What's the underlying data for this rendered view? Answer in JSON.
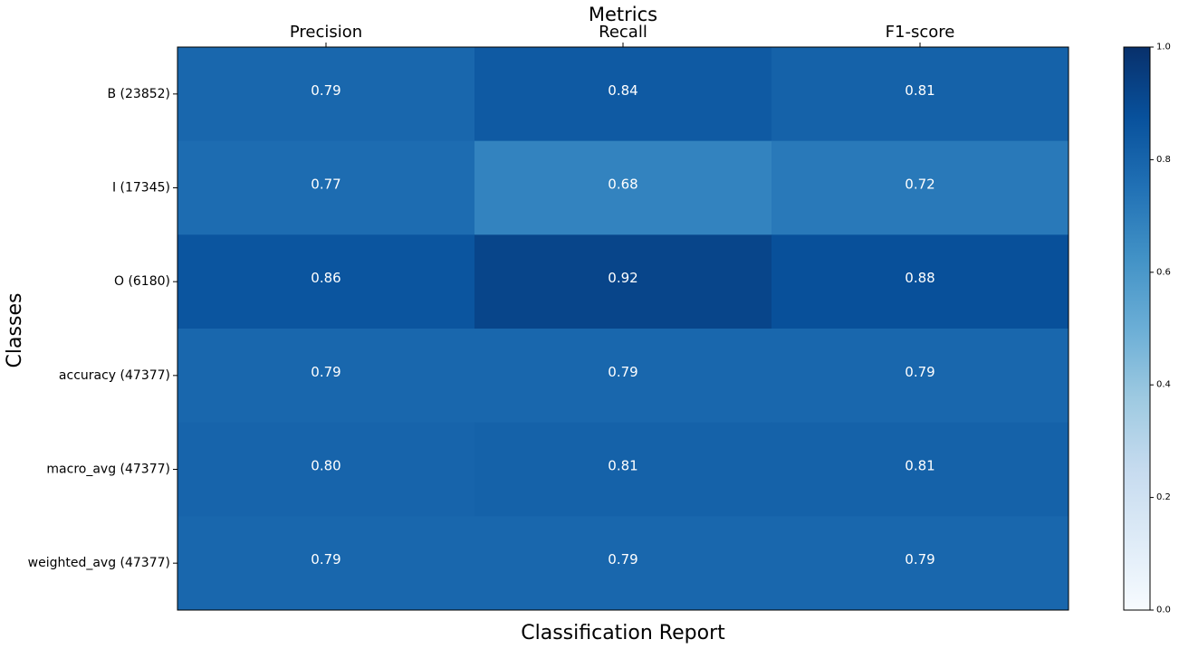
{
  "chart_data": {
    "type": "heatmap",
    "title": "Metrics",
    "xlabel": "Classification Report",
    "ylabel": "Classes",
    "columns": [
      "Precision",
      "Recall",
      "F1-score"
    ],
    "rows": [
      "B (23852)",
      "I (17345)",
      "O (6180)",
      "accuracy (47377)",
      "macro_avg (47377)",
      "weighted_avg (47377)"
    ],
    "values": [
      [
        0.79,
        0.84,
        0.81
      ],
      [
        0.77,
        0.68,
        0.72
      ],
      [
        0.86,
        0.92,
        0.88
      ],
      [
        0.79,
        0.79,
        0.79
      ],
      [
        0.8,
        0.81,
        0.81
      ],
      [
        0.79,
        0.79,
        0.79
      ]
    ],
    "value_labels": [
      [
        "0.79",
        "0.84",
        "0.81"
      ],
      [
        "0.77",
        "0.68",
        "0.72"
      ],
      [
        "0.86",
        "0.92",
        "0.88"
      ],
      [
        "0.79",
        "0.79",
        "0.79"
      ],
      [
        "0.80",
        "0.81",
        "0.81"
      ],
      [
        "0.79",
        "0.79",
        "0.79"
      ]
    ],
    "colormap": "Blues",
    "colorbar": {
      "range": [
        0,
        1
      ],
      "ticks": [
        0.0,
        0.2,
        0.4,
        0.6,
        0.8,
        1.0
      ],
      "tick_labels": [
        "0.0",
        "0.2",
        "0.4",
        "0.6",
        "0.8",
        "1.0"
      ]
    },
    "x_axis_position": "top",
    "grid": false
  }
}
